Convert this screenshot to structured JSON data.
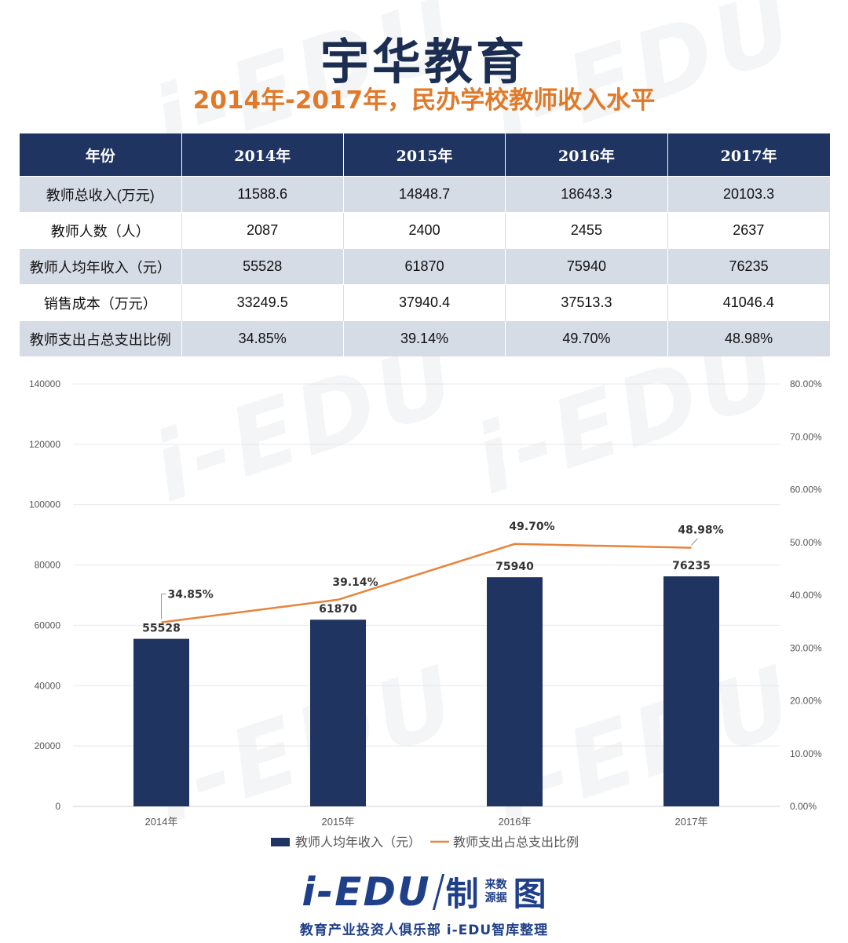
{
  "title": "宇华教育",
  "subtitle": "2014年-2017年，民办学校教师收入水平",
  "table": {
    "headers": [
      "年份",
      "2014年",
      "2015年",
      "2016年",
      "2017年"
    ],
    "rows": [
      {
        "label": "教师总收入(万元)",
        "values": [
          "11588.6",
          "14848.7",
          "18643.3",
          "20103.3"
        ]
      },
      {
        "label": "教师人数（人）",
        "values": [
          "2087",
          "2400",
          "2455",
          "2637"
        ]
      },
      {
        "label": "教师人均年收入（元）",
        "values": [
          "55528",
          "61870",
          "75940",
          "76235"
        ]
      },
      {
        "label": "销售成本（万元）",
        "values": [
          "33249.5",
          "37940.4",
          "37513.3",
          "41046.4"
        ]
      },
      {
        "label": "教师支出占总支出比例",
        "values": [
          "34.85%",
          "39.14%",
          "49.70%",
          "48.98%"
        ]
      }
    ]
  },
  "chart_data": {
    "type": "bar",
    "categories": [
      "2014年",
      "2015年",
      "2016年",
      "2017年"
    ],
    "series": [
      {
        "name": "教师人均年收入（元）",
        "type": "bar",
        "axis": "left",
        "values": [
          55528,
          61870,
          75940,
          76235
        ],
        "labels": [
          "55528",
          "61870",
          "75940",
          "76235"
        ],
        "color": "#1f3460"
      },
      {
        "name": "教师支出占总支出比例",
        "type": "line",
        "axis": "right",
        "values": [
          34.85,
          39.14,
          49.7,
          48.98
        ],
        "labels": [
          "34.85%",
          "39.14%",
          "49.70%",
          "48.98%"
        ],
        "color": "#e8833a"
      }
    ],
    "ylim_left": [
      0,
      140000
    ],
    "left_ticks": [
      "0",
      "20000",
      "40000",
      "60000",
      "80000",
      "100000",
      "120000",
      "140000"
    ],
    "ylim_right": [
      0,
      80
    ],
    "right_ticks": [
      "0.00%",
      "10.00%",
      "20.00%",
      "30.00%",
      "40.00%",
      "50.00%",
      "60.00%",
      "70.00%",
      "80.00%"
    ],
    "grid": true,
    "legend": "bottom"
  },
  "footer": {
    "brand": "i-EDU",
    "zhi": "制",
    "source_line1": "来数",
    "source_line2": "源据",
    "tu": "图",
    "sub": "教育产业投资人俱乐部  i-EDU智库整理"
  },
  "colors": {
    "navy": "#1f3460",
    "orange": "#e8833a"
  }
}
